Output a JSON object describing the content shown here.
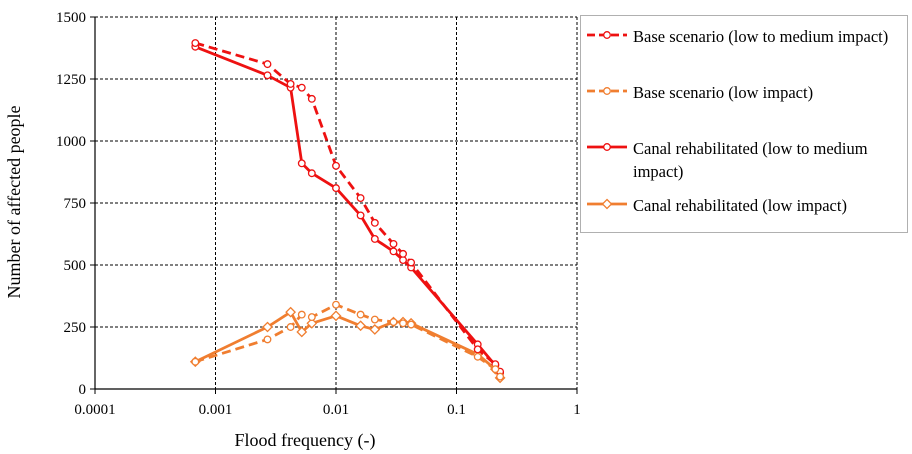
{
  "chart_data": {
    "type": "line",
    "xlabel": "Flood frequency (-)",
    "ylabel": "Number of affected people",
    "xscale": "log",
    "xlim": [
      0.0001,
      1
    ],
    "ylim": [
      0,
      1500
    ],
    "xticks": [
      0.0001,
      0.001,
      0.01,
      0.1,
      1
    ],
    "xtick_labels": [
      "0.0001",
      "0.001",
      "0.01",
      "0.1",
      "1"
    ],
    "yticks": [
      0,
      250,
      500,
      750,
      1000,
      1250,
      1500
    ],
    "ytick_labels": [
      "0",
      "250",
      "500",
      "750",
      "1000",
      "1250",
      "1500"
    ],
    "grid": true,
    "legend_position": "right",
    "series": [
      {
        "name": "Base scenario (low to medium impact)",
        "color": "#ee1111",
        "line_style": "dashed",
        "marker": "circle",
        "x": [
          0.00068,
          0.0027,
          0.0042,
          0.0052,
          0.0063,
          0.01,
          0.016,
          0.021,
          0.03,
          0.036,
          0.042,
          0.15,
          0.21,
          0.23
        ],
        "y": [
          1395,
          1310,
          1230,
          1215,
          1170,
          900,
          770,
          670,
          585,
          545,
          510,
          160,
          100,
          70
        ]
      },
      {
        "name": "Base scenario (low impact)",
        "color": "#f07e30",
        "line_style": "dashed",
        "marker": "circle",
        "x": [
          0.00068,
          0.0027,
          0.0042,
          0.0052,
          0.0063,
          0.01,
          0.016,
          0.021,
          0.03,
          0.036,
          0.042,
          0.15,
          0.21,
          0.23
        ],
        "y": [
          110,
          200,
          250,
          300,
          290,
          340,
          300,
          280,
          270,
          265,
          260,
          130,
          80,
          50
        ]
      },
      {
        "name": "Canal rehabilitated (low to medium impact)",
        "color": "#ee1111",
        "line_style": "solid",
        "marker": "circle",
        "x": [
          0.00068,
          0.0027,
          0.0042,
          0.0052,
          0.0063,
          0.01,
          0.016,
          0.021,
          0.03,
          0.036,
          0.042,
          0.15,
          0.21,
          0.23
        ],
        "y": [
          1380,
          1265,
          1215,
          910,
          870,
          810,
          700,
          605,
          555,
          520,
          490,
          180,
          95,
          65
        ]
      },
      {
        "name": "Canal rehabilitated (low impact)",
        "color": "#f07e30",
        "line_style": "solid",
        "marker": "diamond",
        "x": [
          0.00068,
          0.0027,
          0.0042,
          0.0052,
          0.0063,
          0.01,
          0.016,
          0.021,
          0.03,
          0.036,
          0.042,
          0.15,
          0.21,
          0.23
        ],
        "y": [
          110,
          250,
          310,
          230,
          265,
          295,
          255,
          240,
          270,
          270,
          265,
          140,
          80,
          45
        ]
      }
    ]
  }
}
